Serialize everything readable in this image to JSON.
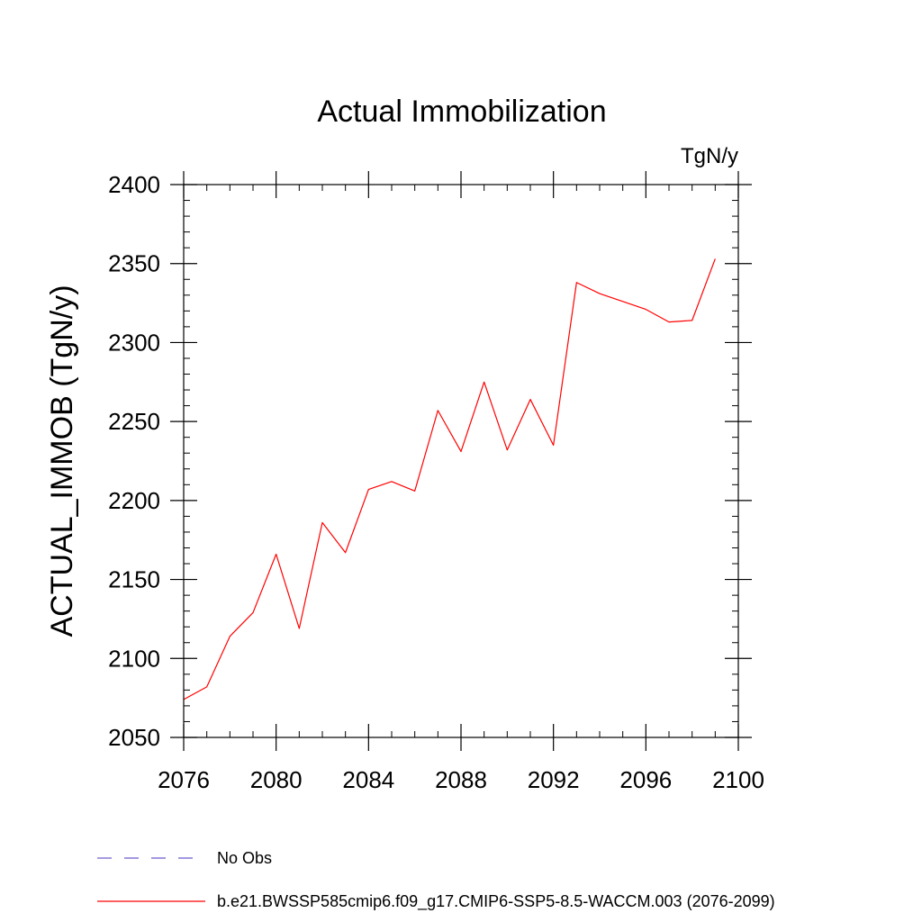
{
  "chart_data": {
    "type": "line",
    "title": "Actual Immobilization",
    "units": "TgN/y",
    "xlabel": "",
    "ylabel": "ACTUAL_IMMOB  (TgN/y)",
    "xlim": [
      2076,
      2100
    ],
    "ylim": [
      2050,
      2400
    ],
    "x_ticks": [
      2076,
      2080,
      2084,
      2088,
      2092,
      2096,
      2100
    ],
    "y_ticks": [
      2050,
      2100,
      2150,
      2200,
      2250,
      2300,
      2350,
      2400
    ],
    "x_minor_step": 1,
    "y_minor_step": 10,
    "grid": false,
    "series": [
      {
        "name": "b.e21.BWSSP585cmip6.f09_g17.CMIP6-SSP5-8.5-WACCM.003 (2076-2099)",
        "color": "#ff0000",
        "x": [
          2076,
          2077,
          2078,
          2079,
          2080,
          2081,
          2082,
          2083,
          2084,
          2085,
          2086,
          2087,
          2088,
          2089,
          2090,
          2091,
          2092,
          2093,
          2094,
          2095,
          2096,
          2097,
          2098,
          2099
        ],
        "y": [
          2074,
          2082,
          2114,
          2129,
          2166,
          2119,
          2186,
          2167,
          2207,
          2212,
          2206,
          2257,
          2231,
          2275,
          2232,
          2264,
          2235,
          2338,
          2331,
          2326,
          2321,
          2313,
          2314,
          2353
        ]
      }
    ],
    "legend": [
      {
        "label": "No Obs",
        "style": "dashed",
        "color": "#6a5acd"
      },
      {
        "label": "b.e21.BWSSP585cmip6.f09_g17.CMIP6-SSP5-8.5-WACCM.003 (2076-2099)",
        "style": "solid",
        "color": "#ff0000"
      }
    ],
    "legend_position": "bottom-left"
  }
}
